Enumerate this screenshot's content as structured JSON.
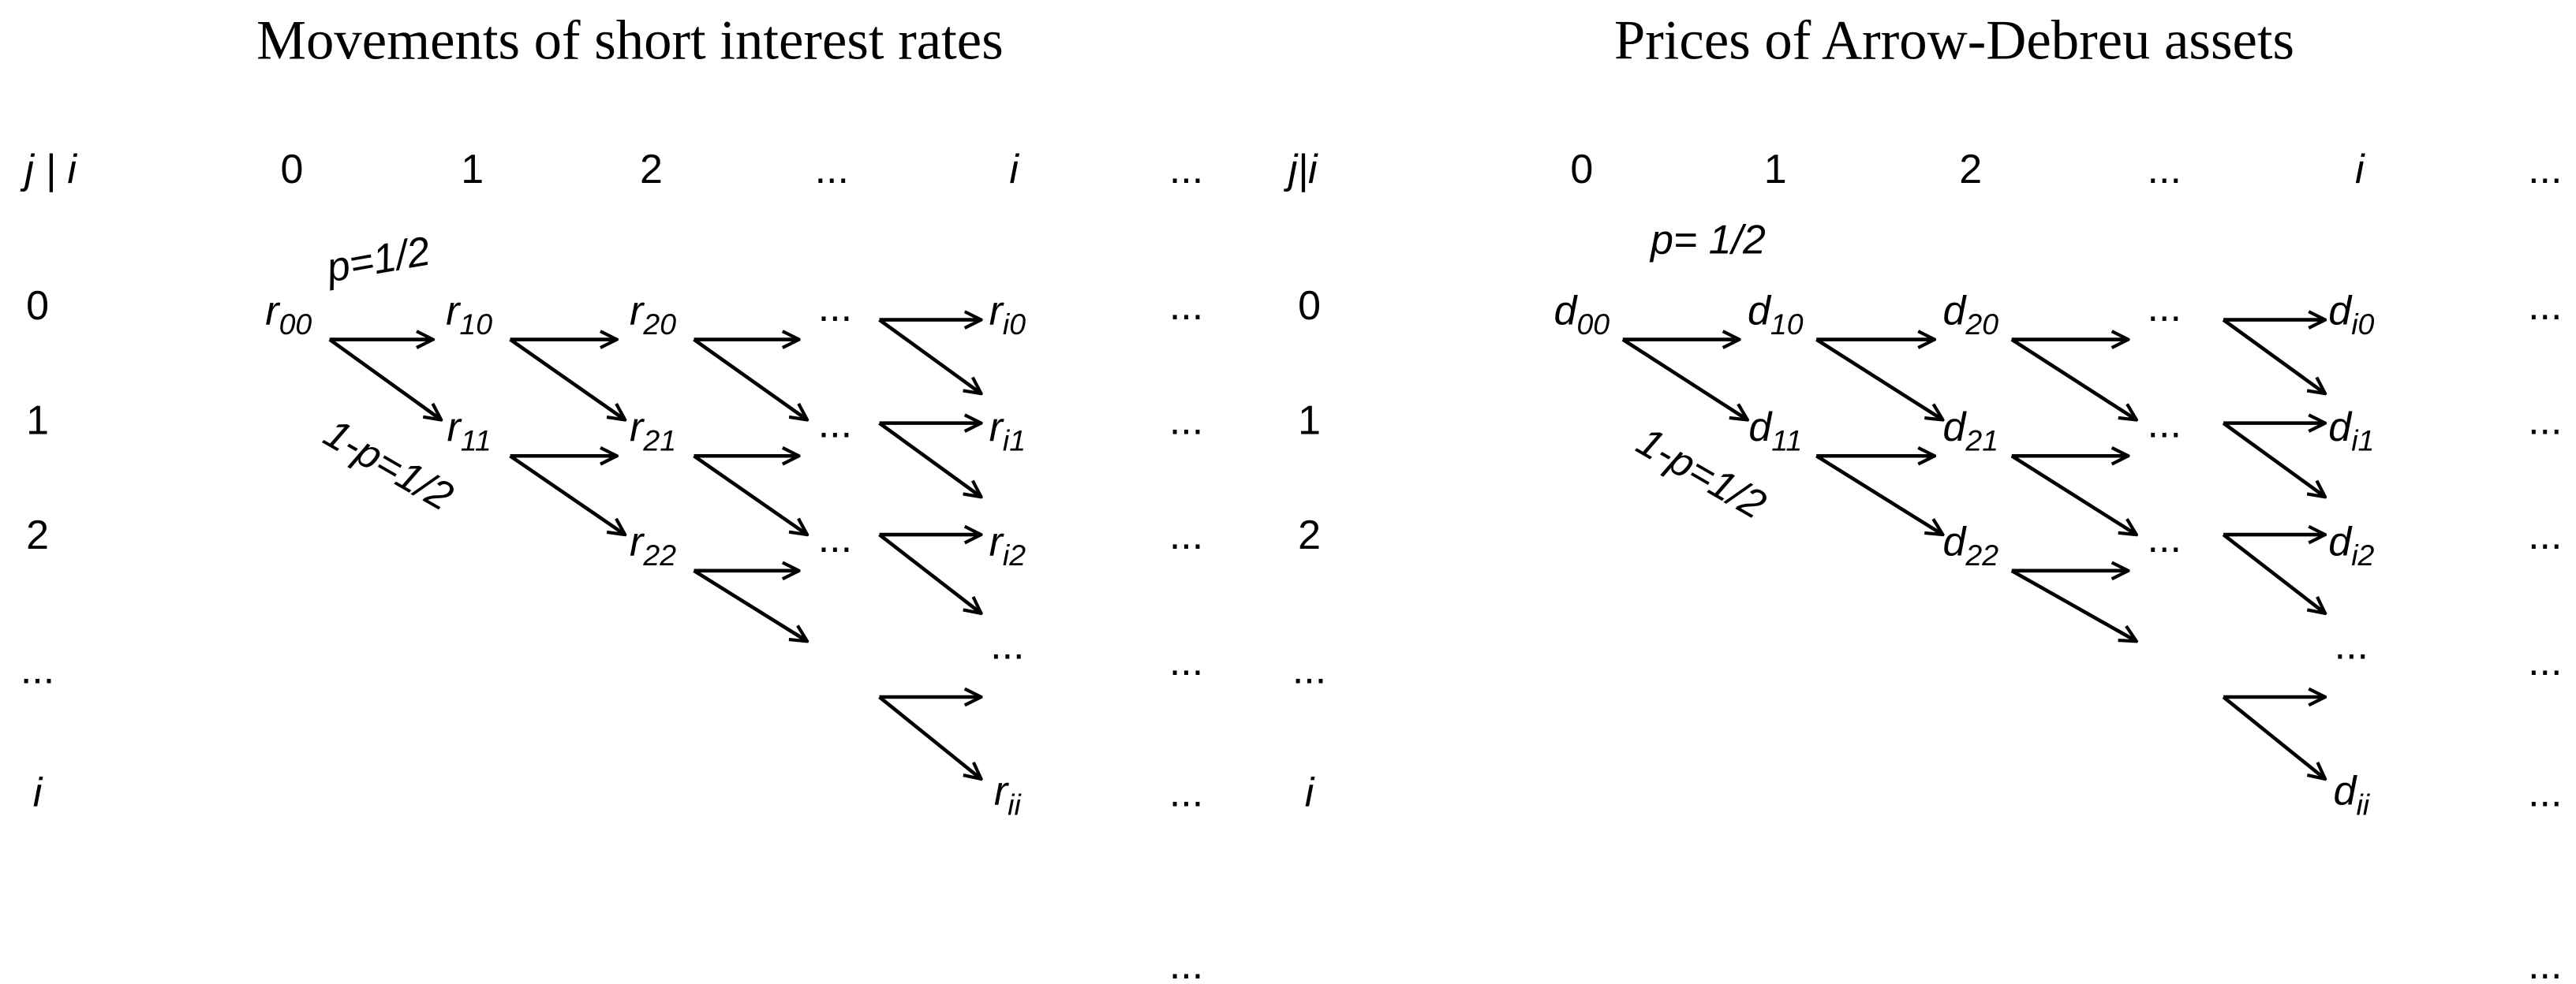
{
  "panels": [
    {
      "title": "Movements of short interest rates",
      "corner": "j |  i",
      "column_headers": [
        "0",
        "1",
        "2",
        "...",
        "i",
        "..."
      ],
      "row_labels": [
        "0",
        "1",
        "2",
        "...",
        "i"
      ],
      "right_column": [
        "...",
        "...",
        "...",
        "...",
        "...",
        "..."
      ],
      "p_up": "p=1/2",
      "p_down": "1-p=1/2",
      "nodes": [
        {
          "base": "r",
          "sub": "00"
        },
        {
          "base": "r",
          "sub": "10"
        },
        {
          "base": "r",
          "sub": "11"
        },
        {
          "base": "r",
          "sub": "20"
        },
        {
          "base": "r",
          "sub": "21"
        },
        {
          "base": "r",
          "sub": "22"
        },
        {
          "label": "..."
        },
        {
          "label": "..."
        },
        {
          "label": "..."
        },
        {
          "base": "r",
          "sub": "i0"
        },
        {
          "base": "r",
          "sub": "i1"
        },
        {
          "base": "r",
          "sub": "i2"
        },
        {
          "label": "..."
        },
        {
          "base": "r",
          "sub": "ii"
        }
      ]
    },
    {
      "title": "Prices of Arrow-Debreu assets",
      "corner": "j|i",
      "column_headers": [
        "0",
        "1",
        "2",
        "...",
        "i",
        "..."
      ],
      "row_labels": [
        "0",
        "1",
        "2",
        "...",
        "i"
      ],
      "right_column": [
        "...",
        "...",
        "...",
        "...",
        "...",
        "..."
      ],
      "p_up": "p= 1/2",
      "p_down": "1-p=1/2",
      "nodes": [
        {
          "base": "d",
          "sub": "00"
        },
        {
          "base": "d",
          "sub": "10"
        },
        {
          "base": "d",
          "sub": "11"
        },
        {
          "base": "d",
          "sub": "20"
        },
        {
          "base": "d",
          "sub": "21"
        },
        {
          "base": "d",
          "sub": "22"
        },
        {
          "label": "..."
        },
        {
          "label": "..."
        },
        {
          "label": "..."
        },
        {
          "base": "d",
          "sub": "i0"
        },
        {
          "base": "d",
          "sub": "i1"
        },
        {
          "base": "d",
          "sub": "i2"
        },
        {
          "label": "..."
        },
        {
          "base": "d",
          "sub": "ii"
        }
      ]
    }
  ]
}
